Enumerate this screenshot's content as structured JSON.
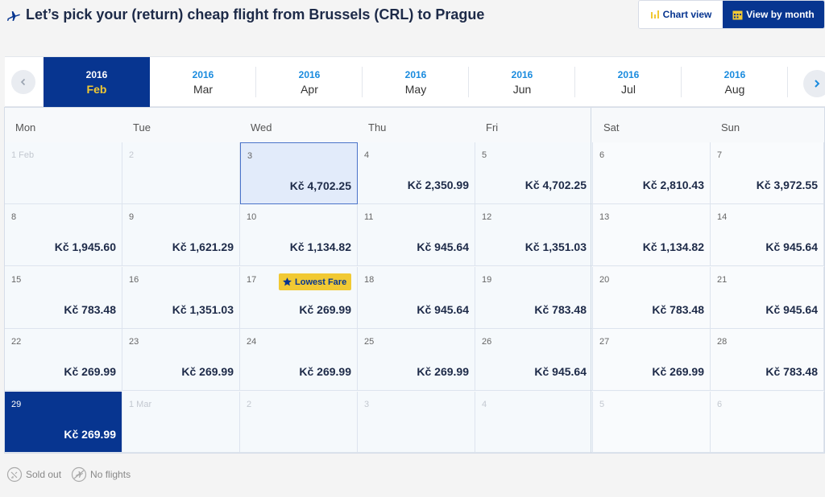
{
  "header": {
    "title": "Let’s pick your (return) cheap flight from Brussels (CRL) to Prague"
  },
  "view_toggle": {
    "chart_label": "Chart view",
    "month_label": "View by month"
  },
  "months": [
    {
      "year": "2016",
      "month": "Feb",
      "active": true
    },
    {
      "year": "2016",
      "month": "Mar"
    },
    {
      "year": "2016",
      "month": "Apr"
    },
    {
      "year": "2016",
      "month": "May"
    },
    {
      "year": "2016",
      "month": "Jun"
    },
    {
      "year": "2016",
      "month": "Jul"
    },
    {
      "year": "2016",
      "month": "Aug"
    }
  ],
  "weekdays": [
    "Mon",
    "Tue",
    "Wed",
    "Thu",
    "Fri",
    "Sat",
    "Sun"
  ],
  "badge": "Lowest Fare",
  "calendar": [
    [
      {
        "day": "1 Feb",
        "price": "",
        "out": true
      },
      {
        "day": "2",
        "price": "",
        "out": true
      },
      {
        "day": "3",
        "price": "Kč 4,702.25",
        "hover": true
      },
      {
        "day": "4",
        "price": "Kč 2,350.99"
      },
      {
        "day": "5",
        "price": "Kč 4,702.25"
      },
      {
        "day": "6",
        "price": "Kč 2,810.43"
      },
      {
        "day": "7",
        "price": "Kč 3,972.55"
      }
    ],
    [
      {
        "day": "8",
        "price": "Kč 1,945.60"
      },
      {
        "day": "9",
        "price": "Kč 1,621.29"
      },
      {
        "day": "10",
        "price": "Kč 1,134.82"
      },
      {
        "day": "11",
        "price": "Kč 945.64"
      },
      {
        "day": "12",
        "price": "Kč 1,351.03"
      },
      {
        "day": "13",
        "price": "Kč 1,134.82"
      },
      {
        "day": "14",
        "price": "Kč 945.64"
      }
    ],
    [
      {
        "day": "15",
        "price": "Kč 783.48"
      },
      {
        "day": "16",
        "price": "Kč 1,351.03"
      },
      {
        "day": "17",
        "price": "Kč 269.99",
        "badge": true
      },
      {
        "day": "18",
        "price": "Kč 945.64"
      },
      {
        "day": "19",
        "price": "Kč 783.48"
      },
      {
        "day": "20",
        "price": "Kč 783.48"
      },
      {
        "day": "21",
        "price": "Kč 945.64"
      }
    ],
    [
      {
        "day": "22",
        "price": "Kč 269.99"
      },
      {
        "day": "23",
        "price": "Kč 269.99"
      },
      {
        "day": "24",
        "price": "Kč 269.99"
      },
      {
        "day": "25",
        "price": "Kč 269.99"
      },
      {
        "day": "26",
        "price": "Kč 945.64"
      },
      {
        "day": "27",
        "price": "Kč 269.99"
      },
      {
        "day": "28",
        "price": "Kč 783.48"
      }
    ],
    [
      {
        "day": "29",
        "price": "Kč 269.99",
        "selected": true
      },
      {
        "day": "1 Mar",
        "price": "",
        "out": true
      },
      {
        "day": "2",
        "price": "",
        "out": true
      },
      {
        "day": "3",
        "price": "",
        "out": true
      },
      {
        "day": "4",
        "price": "",
        "out": true
      },
      {
        "day": "5",
        "price": "",
        "out": true
      },
      {
        "day": "6",
        "price": "",
        "out": true
      }
    ]
  ],
  "legend": {
    "sold_out": "Sold out",
    "no_flights": "No flights"
  },
  "icons": {
    "plane": "plane-icon",
    "chart": "bar-chart-icon",
    "month": "calendar-icon",
    "prev": "chevron-left-icon",
    "next": "chevron-right-icon",
    "star": "star-icon"
  },
  "colors": {
    "primary": "#073590",
    "accent": "#f1c933",
    "link": "#1a8bde"
  }
}
